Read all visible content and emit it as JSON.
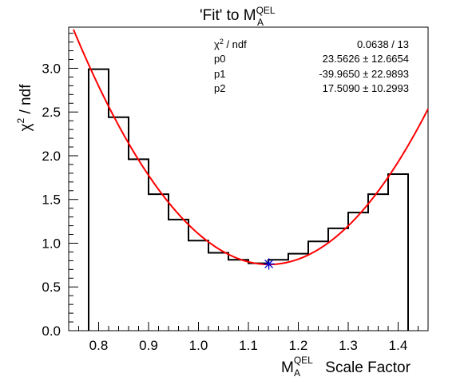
{
  "chart_data": {
    "type": "line",
    "title": {
      "main": "'Fit' to M",
      "sup": "QEL",
      "sub": "A"
    },
    "xlabel": {
      "main": "M",
      "sup": "QEL",
      "sub": "A",
      "tail": " Scale Factor"
    },
    "ylabel": {
      "prefix": "χ",
      "sup": "2",
      "suffix": " / ndf"
    },
    "xlim": [
      0.74,
      1.46
    ],
    "ylim": [
      0.0,
      3.47
    ],
    "xticks": [
      0.8,
      0.9,
      1.0,
      1.1,
      1.2,
      1.3,
      1.4
    ],
    "xtick_labels": [
      "0.8",
      "0.9",
      "1.0",
      "1.1",
      "1.2",
      "1.3",
      "1.4"
    ],
    "yticks": [
      0.0,
      0.5,
      1.0,
      1.5,
      2.0,
      2.5,
      3.0
    ],
    "ytick_labels": [
      "0.0",
      "0.5",
      "1.0",
      "1.5",
      "2.0",
      "2.5",
      "3.0"
    ],
    "histogram": {
      "bin_edges": [
        0.78,
        0.82,
        0.86,
        0.9,
        0.94,
        0.98,
        1.02,
        1.06,
        1.1,
        1.14,
        1.18,
        1.22,
        1.26,
        1.3,
        1.34,
        1.38,
        1.42
      ],
      "values": [
        2.99,
        2.44,
        1.96,
        1.56,
        1.27,
        1.03,
        0.89,
        0.81,
        0.77,
        0.81,
        0.88,
        1.02,
        1.17,
        1.35,
        1.56,
        1.79
      ]
    },
    "fit": {
      "p0": 23.5626,
      "p1": -39.965,
      "p2": 17.509,
      "color": "#ff0000"
    },
    "minimum_marker": {
      "x": 1.141,
      "y": 0.7628,
      "color": "#0000cc"
    },
    "stats": {
      "labels": [
        "χ² / ndf",
        "p0",
        "p1",
        "p2"
      ],
      "values": [
        "0.0638 / 13",
        "23.5626 ± 12.6654",
        "-39.9650 ± 22.9893",
        "17.5090 ± 10.2993"
      ],
      "position": "top-center"
    },
    "grid": false
  }
}
